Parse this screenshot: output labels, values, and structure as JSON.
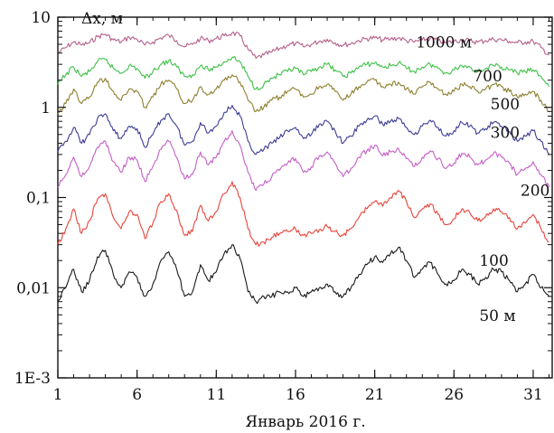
{
  "chart_data": {
    "type": "line",
    "title": "",
    "xlabel": "Январь 2016 г.",
    "ylabel": "Δx, м",
    "xlim": [
      1,
      32.2
    ],
    "ylim": [
      0.001,
      10
    ],
    "yscale": "log",
    "grid": false,
    "legend": "inline-labels",
    "x_ticks": [
      {
        "value": 1,
        "label": "1"
      },
      {
        "value": 6,
        "label": "6"
      },
      {
        "value": 11,
        "label": "11"
      },
      {
        "value": 16,
        "label": "16"
      },
      {
        "value": 21,
        "label": "21"
      },
      {
        "value": 26,
        "label": "26"
      },
      {
        "value": 31,
        "label": "31"
      }
    ],
    "y_ticks": [
      {
        "value": 0.001,
        "label": "1E-3"
      },
      {
        "value": 0.01,
        "label": "0,01"
      },
      {
        "value": 0.1,
        "label": "0,1"
      },
      {
        "value": 1,
        "label": "1"
      },
      {
        "value": 10,
        "label": "10"
      }
    ],
    "x": [
      1,
      1.5,
      2,
      2.5,
      3,
      3.5,
      4,
      4.5,
      5,
      5.5,
      6,
      6.5,
      7,
      7.5,
      8,
      8.5,
      9,
      9.5,
      10,
      10.5,
      11,
      11.5,
      12,
      12.5,
      13,
      13.5,
      14,
      14.5,
      15,
      15.5,
      16,
      16.5,
      17,
      17.5,
      18,
      18.5,
      19,
      19.5,
      20,
      20.5,
      21,
      21.5,
      22,
      22.5,
      23,
      23.5,
      24,
      24.5,
      25,
      25.5,
      26,
      26.5,
      27,
      27.5,
      28,
      28.5,
      29,
      29.5,
      30,
      30.5,
      31,
      31.5,
      32
    ],
    "series": [
      {
        "name": "1000 м",
        "color": "#b5608a",
        "label_x": 23.6,
        "label_y": 4.6,
        "values": [
          4.0,
          4.6,
          5.3,
          4.9,
          5.2,
          6.1,
          6.5,
          5.6,
          5.3,
          6.0,
          5.7,
          4.9,
          5.3,
          5.9,
          6.3,
          5.5,
          4.7,
          5.0,
          5.8,
          5.5,
          5.8,
          6.2,
          6.7,
          6.2,
          4.4,
          3.5,
          3.8,
          4.1,
          4.5,
          4.9,
          5.1,
          4.7,
          5.0,
          5.4,
          5.7,
          5.2,
          4.9,
          5.1,
          5.5,
          5.8,
          5.9,
          5.6,
          5.7,
          5.9,
          5.5,
          5.3,
          5.6,
          5.8,
          5.5,
          5.2,
          5.4,
          5.6,
          5.5,
          5.3,
          5.5,
          5.7,
          5.6,
          5.4,
          5.2,
          5.3,
          5.4,
          4.6,
          3.8
        ]
      },
      {
        "name": "700",
        "color": "#3fc048",
        "label_x": 27.2,
        "label_y": 1.95,
        "values": [
          1.8,
          2.3,
          2.8,
          2.2,
          2.5,
          3.2,
          3.4,
          2.7,
          2.4,
          2.9,
          2.7,
          2.1,
          2.5,
          3.0,
          3.3,
          2.8,
          2.2,
          2.3,
          2.9,
          2.6,
          2.8,
          3.2,
          3.6,
          3.2,
          2.2,
          1.6,
          1.8,
          2.1,
          2.3,
          2.5,
          2.7,
          2.3,
          2.5,
          2.8,
          3.0,
          2.6,
          2.2,
          2.4,
          2.8,
          3.0,
          3.1,
          2.8,
          2.9,
          3.1,
          2.7,
          2.5,
          2.8,
          3.0,
          2.7,
          2.4,
          2.6,
          2.9,
          2.8,
          2.5,
          2.7,
          2.9,
          2.8,
          2.6,
          2.4,
          2.5,
          2.6,
          2.2,
          1.7
        ]
      },
      {
        "name": "500",
        "color": "#8e8030",
        "label_x": 28.3,
        "label_y": 0.95,
        "values": [
          0.85,
          1.1,
          1.6,
          1.1,
          1.3,
          1.9,
          2.1,
          1.5,
          1.2,
          1.6,
          1.5,
          1.0,
          1.3,
          1.8,
          2.0,
          1.6,
          1.1,
          1.2,
          1.7,
          1.4,
          1.6,
          2.0,
          2.3,
          1.9,
          1.2,
          0.9,
          1.0,
          1.2,
          1.3,
          1.5,
          1.6,
          1.3,
          1.4,
          1.7,
          1.8,
          1.5,
          1.2,
          1.4,
          1.7,
          1.9,
          2.0,
          1.7,
          1.8,
          1.9,
          1.6,
          1.4,
          1.7,
          1.9,
          1.6,
          1.4,
          1.5,
          1.8,
          1.7,
          1.5,
          1.6,
          1.8,
          1.7,
          1.5,
          1.3,
          1.4,
          1.5,
          1.2,
          0.9
        ]
      },
      {
        "name": "300",
        "color": "#3d3c96",
        "label_x": 28.3,
        "label_y": 0.46,
        "values": [
          0.32,
          0.42,
          0.6,
          0.4,
          0.5,
          0.75,
          0.85,
          0.55,
          0.45,
          0.62,
          0.58,
          0.36,
          0.5,
          0.72,
          0.85,
          0.62,
          0.38,
          0.42,
          0.68,
          0.52,
          0.62,
          0.88,
          1.05,
          0.8,
          0.42,
          0.3,
          0.34,
          0.4,
          0.46,
          0.55,
          0.6,
          0.45,
          0.5,
          0.65,
          0.7,
          0.55,
          0.4,
          0.48,
          0.62,
          0.72,
          0.8,
          0.65,
          0.7,
          0.75,
          0.6,
          0.5,
          0.62,
          0.72,
          0.6,
          0.48,
          0.55,
          0.68,
          0.62,
          0.52,
          0.58,
          0.68,
          0.62,
          0.54,
          0.42,
          0.48,
          0.55,
          0.42,
          0.3
        ]
      },
      {
        "name": "200",
        "color": "#c45fc7",
        "label_x": 30.2,
        "label_y": 0.105,
        "values": [
          0.13,
          0.18,
          0.28,
          0.17,
          0.22,
          0.36,
          0.42,
          0.25,
          0.19,
          0.28,
          0.26,
          0.15,
          0.22,
          0.34,
          0.42,
          0.28,
          0.16,
          0.18,
          0.32,
          0.23,
          0.28,
          0.42,
          0.55,
          0.38,
          0.19,
          0.12,
          0.14,
          0.17,
          0.2,
          0.24,
          0.27,
          0.19,
          0.22,
          0.29,
          0.32,
          0.24,
          0.17,
          0.21,
          0.28,
          0.33,
          0.38,
          0.29,
          0.32,
          0.35,
          0.27,
          0.22,
          0.28,
          0.33,
          0.27,
          0.21,
          0.24,
          0.31,
          0.28,
          0.23,
          0.26,
          0.31,
          0.28,
          0.24,
          0.18,
          0.21,
          0.25,
          0.18,
          0.13
        ]
      },
      {
        "name": "100",
        "color": "#e8443a",
        "label_x": 27.6,
        "label_y": 0.0175,
        "values": [
          0.03,
          0.045,
          0.075,
          0.04,
          0.055,
          0.095,
          0.11,
          0.06,
          0.045,
          0.07,
          0.065,
          0.035,
          0.052,
          0.09,
          0.11,
          0.072,
          0.038,
          0.042,
          0.082,
          0.055,
          0.07,
          0.11,
          0.15,
          0.1,
          0.045,
          0.03,
          0.032,
          0.036,
          0.04,
          0.042,
          0.045,
          0.038,
          0.04,
          0.044,
          0.048,
          0.042,
          0.038,
          0.045,
          0.06,
          0.075,
          0.09,
          0.08,
          0.1,
          0.12,
          0.09,
          0.06,
          0.075,
          0.085,
          0.065,
          0.05,
          0.058,
          0.075,
          0.068,
          0.055,
          0.062,
          0.075,
          0.07,
          0.06,
          0.045,
          0.052,
          0.065,
          0.045,
          0.032
        ]
      },
      {
        "name": "50 м",
        "color": "#1a1a1a",
        "label_x": 27.6,
        "label_y": 0.0043,
        "values": [
          0.007,
          0.01,
          0.016,
          0.009,
          0.012,
          0.022,
          0.026,
          0.014,
          0.01,
          0.015,
          0.013,
          0.008,
          0.011,
          0.02,
          0.025,
          0.016,
          0.008,
          0.009,
          0.018,
          0.012,
          0.015,
          0.024,
          0.03,
          0.021,
          0.009,
          0.007,
          0.008,
          0.008,
          0.009,
          0.009,
          0.01,
          0.008,
          0.009,
          0.01,
          0.011,
          0.009,
          0.008,
          0.01,
          0.014,
          0.018,
          0.022,
          0.019,
          0.024,
          0.028,
          0.02,
          0.013,
          0.016,
          0.019,
          0.014,
          0.011,
          0.012,
          0.016,
          0.014,
          0.011,
          0.013,
          0.016,
          0.015,
          0.012,
          0.009,
          0.011,
          0.014,
          0.01,
          0.008
        ]
      }
    ]
  }
}
